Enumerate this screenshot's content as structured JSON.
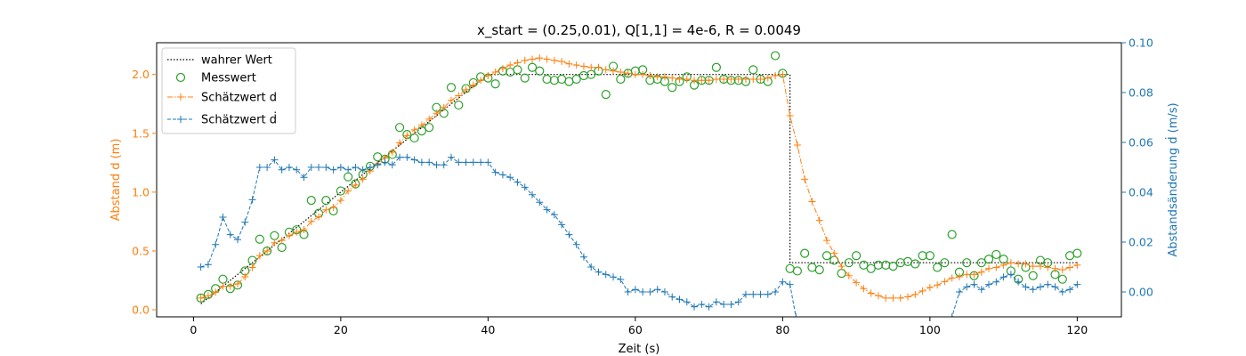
{
  "chart_data": {
    "type": "line",
    "title": "x_start = (0.25,0.01),  Q[1,1] = 4e-6,  R = 0.0049",
    "xlabel": "Zeit (s)",
    "ylabel_left": "Abstand d (m)",
    "ylabel_right": "Abstandsänderung ḋ (m/s)",
    "xlim": [
      -5,
      126
    ],
    "ylim_left": [
      -0.06,
      2.27
    ],
    "ylim_right": [
      -0.01,
      0.1
    ],
    "x_ticks": [
      0,
      20,
      40,
      60,
      80,
      100,
      120
    ],
    "y_left_ticks": [
      0.0,
      0.5,
      1.0,
      1.5,
      2.0
    ],
    "y_left_tick_labels": [
      "0.0",
      "0.5",
      "1.0",
      "1.5",
      "2.0"
    ],
    "y_right_ticks": [
      0.0,
      0.02,
      0.04,
      0.06,
      0.08,
      0.1
    ],
    "y_right_tick_labels": [
      "0.00",
      "0.02",
      "0.04",
      "0.06",
      "0.08",
      "0.10"
    ],
    "grid": false,
    "legend_position": "top-left",
    "colors": {
      "true_value": "#000000",
      "measurement": "#2ca02c",
      "estimate_d": "#ff7f0e",
      "estimate_ddot": "#1f77b4",
      "left_axis": "#ff7f0e",
      "right_axis": "#1f77b4"
    },
    "legend": [
      {
        "label": "wahrer Wert",
        "key": "true_value"
      },
      {
        "label": "Messwert",
        "key": "measurement"
      },
      {
        "label": "Schätzwert d",
        "key": "estimate_d"
      },
      {
        "label": "Schätzwert ḋ",
        "key": "estimate_ddot"
      }
    ],
    "series": [
      {
        "name": "wahrer Wert",
        "axis": "left",
        "style": "dotted",
        "x": [
          1,
          40,
          80,
          81,
          81,
          120
        ],
        "y": [
          0.05,
          2.0,
          2.0,
          2.0,
          0.4,
          0.4
        ]
      },
      {
        "name": "Messwert",
        "axis": "left",
        "style": "open-circle",
        "x": [
          1,
          2,
          3,
          4,
          5,
          6,
          7,
          8,
          9,
          10,
          11,
          12,
          13,
          14,
          15,
          16,
          17,
          18,
          19,
          20,
          21,
          22,
          23,
          24,
          25,
          26,
          27,
          28,
          29,
          30,
          31,
          32,
          33,
          34,
          35,
          36,
          37,
          38,
          39,
          40,
          41,
          42,
          43,
          44,
          45,
          46,
          47,
          48,
          49,
          50,
          51,
          52,
          53,
          54,
          55,
          56,
          57,
          58,
          59,
          60,
          61,
          62,
          63,
          64,
          65,
          66,
          67,
          68,
          69,
          70,
          71,
          72,
          73,
          74,
          75,
          76,
          77,
          78,
          79,
          80,
          81,
          82,
          83,
          84,
          85,
          86,
          87,
          88,
          89,
          90,
          91,
          92,
          93,
          94,
          95,
          96,
          97,
          98,
          99,
          100,
          101,
          102,
          103,
          104,
          105,
          106,
          107,
          108,
          109,
          110,
          111,
          112,
          113,
          114,
          115,
          116,
          117,
          118,
          119,
          120
        ],
        "y": [
          0.1,
          0.13,
          0.18,
          0.26,
          0.18,
          0.21,
          0.33,
          0.42,
          0.6,
          0.5,
          0.63,
          0.53,
          0.66,
          0.68,
          0.64,
          0.93,
          0.82,
          0.93,
          0.84,
          1.01,
          1.13,
          1.07,
          1.15,
          1.22,
          1.3,
          1.28,
          1.32,
          1.55,
          1.49,
          1.46,
          1.52,
          1.55,
          1.72,
          1.67,
          1.89,
          1.74,
          1.88,
          1.93,
          1.98,
          1.97,
          1.92,
          2.03,
          2.02,
          2.04,
          1.97,
          2.06,
          2.03,
          1.96,
          1.95,
          1.96,
          1.94,
          1.96,
          1.99,
          2.0,
          2.03,
          1.83,
          2.07,
          1.96,
          2.01,
          2.03,
          2.04,
          1.95,
          1.96,
          1.94,
          1.89,
          1.94,
          1.98,
          1.91,
          1.95,
          1.95,
          2.06,
          1.96,
          1.95,
          1.95,
          1.94,
          2.04,
          1.96,
          1.94,
          2.16,
          2.01,
          0.35,
          0.33,
          0.48,
          0.36,
          0.34,
          0.46,
          0.42,
          0.31,
          0.4,
          0.46,
          0.38,
          0.35,
          0.38,
          0.38,
          0.37,
          0.4,
          0.41,
          0.39,
          0.46,
          0.46,
          0.36,
          0.4,
          0.64,
          0.32,
          0.4,
          0.29,
          0.4,
          0.43,
          0.47,
          0.43,
          0.33,
          0.26,
          0.36,
          0.29,
          0.42,
          0.4,
          0.3,
          0.26,
          0.46,
          0.48
        ]
      },
      {
        "name": "Schätzwert d",
        "axis": "left",
        "style": "dashdot-plus",
        "x": [
          1,
          2,
          3,
          4,
          5,
          6,
          7,
          8,
          9,
          10,
          11,
          12,
          13,
          14,
          15,
          16,
          17,
          18,
          19,
          20,
          21,
          22,
          23,
          24,
          25,
          26,
          27,
          28,
          29,
          30,
          31,
          32,
          33,
          34,
          35,
          36,
          37,
          38,
          39,
          40,
          41,
          42,
          43,
          44,
          45,
          46,
          47,
          48,
          49,
          50,
          51,
          52,
          53,
          54,
          55,
          56,
          57,
          58,
          59,
          60,
          61,
          62,
          63,
          64,
          65,
          66,
          67,
          68,
          69,
          70,
          71,
          72,
          73,
          74,
          75,
          76,
          77,
          78,
          79,
          80,
          81,
          82,
          83,
          84,
          85,
          86,
          87,
          88,
          89,
          90,
          91,
          92,
          93,
          94,
          95,
          96,
          97,
          98,
          99,
          100,
          101,
          102,
          103,
          104,
          105,
          106,
          107,
          108,
          109,
          110,
          111,
          112,
          113,
          114,
          115,
          116,
          117,
          118,
          119,
          120
        ],
        "y": [
          0.1,
          0.12,
          0.15,
          0.2,
          0.2,
          0.22,
          0.28,
          0.36,
          0.46,
          0.5,
          0.57,
          0.59,
          0.63,
          0.66,
          0.68,
          0.75,
          0.79,
          0.85,
          0.87,
          0.93,
          1.01,
          1.06,
          1.11,
          1.18,
          1.24,
          1.29,
          1.34,
          1.42,
          1.48,
          1.53,
          1.57,
          1.62,
          1.67,
          1.72,
          1.78,
          1.82,
          1.87,
          1.91,
          1.95,
          1.99,
          2.02,
          2.05,
          2.08,
          2.1,
          2.12,
          2.13,
          2.14,
          2.13,
          2.12,
          2.11,
          2.09,
          2.08,
          2.07,
          2.06,
          2.06,
          2.04,
          2.03,
          2.02,
          2.01,
          2.0,
          2.0,
          1.99,
          1.98,
          1.98,
          1.97,
          1.96,
          1.96,
          1.95,
          1.95,
          1.95,
          1.96,
          1.96,
          1.96,
          1.96,
          1.96,
          1.96,
          1.96,
          1.97,
          1.99,
          2.0,
          1.65,
          1.4,
          1.11,
          0.92,
          0.76,
          0.59,
          0.48,
          0.37,
          0.29,
          0.23,
          0.18,
          0.14,
          0.12,
          0.1,
          0.1,
          0.1,
          0.11,
          0.13,
          0.16,
          0.19,
          0.21,
          0.24,
          0.27,
          0.28,
          0.3,
          0.3,
          0.32,
          0.35,
          0.36,
          0.38,
          0.4,
          0.39,
          0.39,
          0.37,
          0.37,
          0.36,
          0.35,
          0.34,
          0.36,
          0.38
        ]
      },
      {
        "name": "Schätzwert ḋ",
        "axis": "right",
        "style": "dashed-plus",
        "x": [
          1,
          2,
          3,
          4,
          5,
          6,
          7,
          8,
          9,
          10,
          11,
          12,
          13,
          14,
          15,
          16,
          17,
          18,
          19,
          20,
          21,
          22,
          23,
          24,
          25,
          26,
          27,
          28,
          29,
          30,
          31,
          32,
          33,
          34,
          35,
          36,
          37,
          38,
          39,
          40,
          41,
          42,
          43,
          44,
          45,
          46,
          47,
          48,
          49,
          50,
          51,
          52,
          53,
          54,
          55,
          56,
          57,
          58,
          59,
          60,
          61,
          62,
          63,
          64,
          65,
          66,
          67,
          68,
          69,
          70,
          71,
          72,
          73,
          74,
          75,
          76,
          77,
          78,
          79,
          80,
          81,
          81.8,
          103,
          104,
          105,
          106,
          107,
          108,
          109,
          110,
          111,
          112,
          113,
          114,
          115,
          116,
          117,
          118,
          119,
          120
        ],
        "y": [
          0.01,
          0.011,
          0.019,
          0.03,
          0.023,
          0.021,
          0.028,
          0.037,
          0.05,
          0.05,
          0.053,
          0.049,
          0.05,
          0.049,
          0.046,
          0.05,
          0.05,
          0.05,
          0.049,
          0.05,
          0.049,
          0.05,
          0.049,
          0.05,
          0.051,
          0.052,
          0.051,
          0.054,
          0.054,
          0.053,
          0.052,
          0.052,
          0.051,
          0.051,
          0.054,
          0.052,
          0.052,
          0.052,
          0.052,
          0.052,
          0.048,
          0.047,
          0.046,
          0.044,
          0.042,
          0.039,
          0.036,
          0.033,
          0.031,
          0.027,
          0.023,
          0.019,
          0.014,
          0.01,
          0.008,
          0.007,
          0.006,
          0.005,
          0.0,
          0.001,
          0.0,
          0.0,
          0.001,
          0.0,
          -0.002,
          -0.003,
          -0.004,
          -0.006,
          -0.005,
          -0.006,
          -0.004,
          -0.005,
          -0.005,
          -0.004,
          -0.001,
          -0.001,
          -0.001,
          -0.001,
          0.0,
          0.004,
          0.003,
          -0.01,
          -0.01,
          0.0,
          0.002,
          0.003,
          0.001,
          0.003,
          0.004,
          0.006,
          0.007,
          0.004,
          0.002,
          0.001,
          0.002,
          0.003,
          0.002,
          0.0,
          0.001,
          0.003
        ]
      }
    ]
  }
}
